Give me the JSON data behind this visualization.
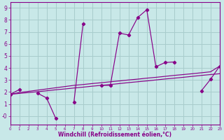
{
  "background_color": "#c8e8e8",
  "grid_color": "#a8cccc",
  "line_color": "#880088",
  "xlabel": "Windchill (Refroidissement éolien,°C)",
  "xlim": [
    0,
    23
  ],
  "ylim": [
    -0.7,
    9.5
  ],
  "xticks": [
    0,
    1,
    2,
    3,
    4,
    5,
    6,
    7,
    8,
    9,
    10,
    11,
    12,
    13,
    14,
    15,
    16,
    17,
    18,
    19,
    20,
    21,
    22,
    23
  ],
  "yticks": [
    0,
    1,
    2,
    3,
    4,
    5,
    6,
    7,
    8,
    9
  ],
  "ytick_labels": [
    "-0",
    "1",
    "2",
    "3",
    "4",
    "5",
    "6",
    "7",
    "8",
    "9"
  ],
  "jagged_x": [
    0,
    1,
    2,
    3,
    4,
    5,
    6,
    7,
    8,
    9,
    10,
    11,
    12,
    13,
    14,
    15,
    16,
    17,
    18,
    19,
    20,
    21,
    22,
    23
  ],
  "jagged_y": [
    1.8,
    2.2,
    null,
    1.9,
    1.5,
    -0.2,
    null,
    1.15,
    7.7,
    null,
    2.55,
    2.55,
    6.9,
    6.75,
    8.2,
    8.85,
    4.1,
    4.45,
    4.5,
    null,
    null,
    2.1,
    3.05,
    4.15
  ],
  "diag1_x": [
    0,
    1,
    2,
    3,
    4,
    5,
    6,
    7,
    8,
    9,
    10,
    11,
    12,
    13,
    14,
    15,
    16,
    17,
    18,
    19,
    20,
    21,
    22,
    23
  ],
  "diag1_y": [
    1.8,
    1.95,
    2.05,
    2.15,
    2.25,
    2.35,
    2.45,
    2.55,
    2.62,
    2.7,
    2.77,
    2.85,
    2.92,
    3.0,
    3.07,
    3.15,
    3.22,
    3.3,
    3.38,
    3.45,
    3.52,
    3.6,
    3.68,
    4.15
  ],
  "diag2_x": [
    0,
    1,
    2,
    3,
    4,
    5,
    6,
    7,
    8,
    9,
    10,
    11,
    12,
    13,
    14,
    15,
    16,
    17,
    18,
    19,
    20,
    21,
    22,
    23
  ],
  "diag2_y": [
    1.8,
    1.88,
    1.95,
    2.02,
    2.1,
    2.18,
    2.25,
    2.33,
    2.4,
    2.48,
    2.55,
    2.62,
    2.7,
    2.78,
    2.85,
    2.92,
    3.0,
    3.08,
    3.15,
    3.22,
    3.3,
    3.38,
    3.45,
    3.52
  ]
}
